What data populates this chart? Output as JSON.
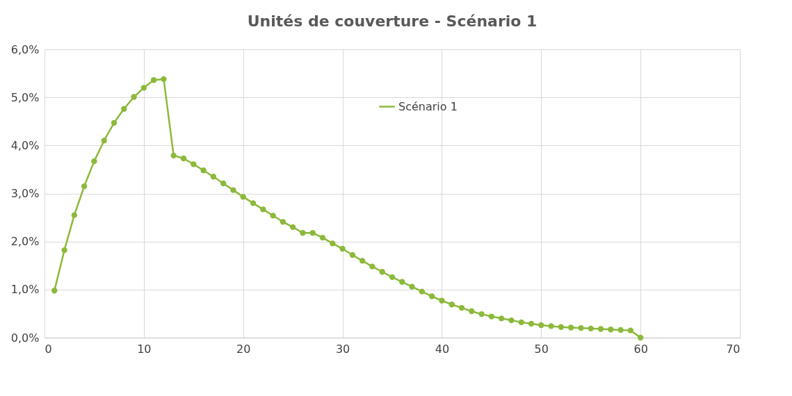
{
  "chart_data": {
    "type": "line",
    "title": "Unités de couverture - Scénario 1",
    "x": [
      1,
      2,
      3,
      4,
      5,
      6,
      7,
      8,
      9,
      10,
      11,
      12,
      13,
      14,
      15,
      16,
      17,
      18,
      19,
      20,
      21,
      22,
      23,
      24,
      25,
      26,
      27,
      28,
      29,
      30,
      31,
      32,
      33,
      34,
      35,
      36,
      37,
      38,
      39,
      40,
      41,
      42,
      43,
      44,
      45,
      46,
      47,
      48,
      49,
      50,
      51,
      52,
      53,
      54,
      55,
      56,
      57,
      58,
      59,
      60
    ],
    "series": [
      {
        "name": "Scénario 1",
        "color": "#8cb93a",
        "values": [
          0.98,
          1.82,
          2.55,
          3.15,
          3.67,
          4.1,
          4.47,
          4.76,
          5.01,
          5.2,
          5.36,
          5.38,
          3.79,
          3.73,
          3.61,
          3.48,
          3.35,
          3.21,
          3.07,
          2.93,
          2.8,
          2.67,
          2.54,
          2.41,
          2.3,
          2.18,
          2.18,
          2.08,
          1.96,
          1.85,
          1.72,
          1.6,
          1.48,
          1.37,
          1.26,
          1.16,
          1.06,
          0.96,
          0.86,
          0.77,
          0.69,
          0.62,
          0.55,
          0.49,
          0.44,
          0.4,
          0.36,
          0.32,
          0.29,
          0.26,
          0.24,
          0.22,
          0.21,
          0.2,
          0.19,
          0.18,
          0.17,
          0.16,
          0.15,
          0.0
        ]
      }
    ],
    "xlim": [
      0,
      70
    ],
    "xticks": [
      0,
      10,
      20,
      30,
      40,
      50,
      60,
      70
    ],
    "ylim": [
      0,
      6
    ],
    "yticks": [
      {
        "value": 0,
        "label": "0,0%"
      },
      {
        "value": 1,
        "label": "1,0%"
      },
      {
        "value": 2,
        "label": "2,0%"
      },
      {
        "value": 3,
        "label": "3,0%"
      },
      {
        "value": 4,
        "label": "4,0%"
      },
      {
        "value": 5,
        "label": "5,0%"
      },
      {
        "value": 6,
        "label": "6,0%"
      }
    ],
    "grid": true,
    "legend": "top",
    "marker": "circle",
    "line_style": "solid"
  }
}
